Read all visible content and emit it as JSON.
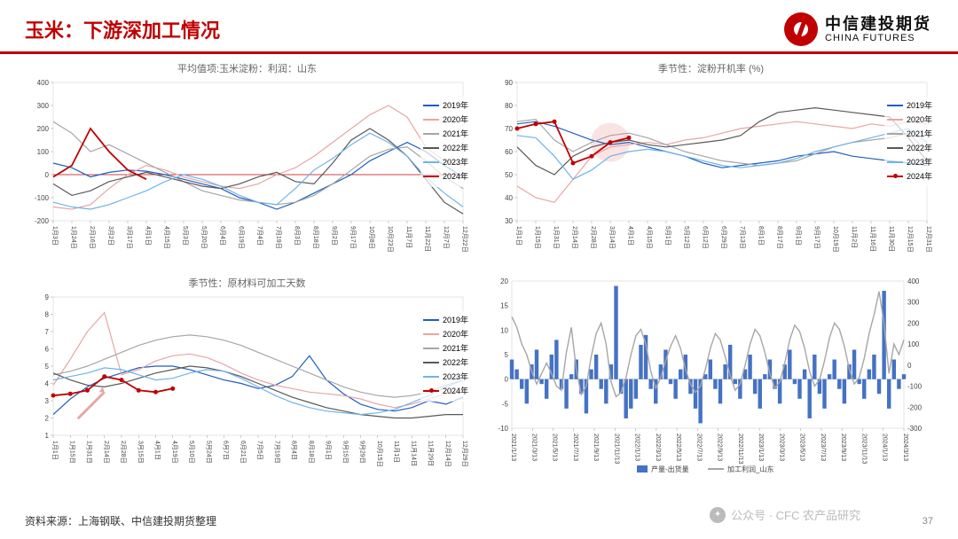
{
  "header": {
    "title": "玉米：下游深加工情况"
  },
  "logo": {
    "cn": "中信建投期货",
    "en": "CHINA FUTURES"
  },
  "footer": {
    "source": "资料来源：上海钢联、中信建投期货整理",
    "page": "37"
  },
  "watermark": {
    "text": "公众号 · CFC 农产品研究"
  },
  "colors": {
    "y2019": "#1f5fbf",
    "y2020": "#e8a5a5",
    "y2021": "#a6a6a6",
    "y2022": "#595959",
    "y2023": "#6fb4e8",
    "y2024": "#c00000",
    "axis": "#999999",
    "bar": "#4472c4",
    "line4": "#a6a6a6",
    "zero": "#c00000"
  },
  "legend_years": [
    {
      "k": "y2019",
      "label": "2019年"
    },
    {
      "k": "y2020",
      "label": "2020年"
    },
    {
      "k": "y2021",
      "label": "2021年"
    },
    {
      "k": "y2022",
      "label": "2022年"
    },
    {
      "k": "y2023",
      "label": "2023年"
    },
    {
      "k": "y2024",
      "label": "2024年"
    }
  ],
  "chart1": {
    "type": "line",
    "title": "平均值项:玉米淀粉：利润：山东",
    "ylim": [
      -200,
      400
    ],
    "ytick_step": 100,
    "x_labels": [
      "1月3日",
      "1月24日",
      "2月16日",
      "3月2日",
      "3月17日",
      "4月1日",
      "4月15日",
      "5月3日",
      "5月20日",
      "6月4日",
      "6月19日",
      "7月4日",
      "7月19日",
      "8月3日",
      "8月18日",
      "9月2日",
      "9月17日",
      "10月8日",
      "10月23日",
      "11月7日",
      "11月22日",
      "12月7日",
      "12月22日"
    ],
    "series": {
      "y2019": [
        50,
        30,
        -10,
        10,
        20,
        15,
        0,
        -20,
        -40,
        -60,
        -100,
        -120,
        -150,
        -120,
        -80,
        -40,
        0,
        60,
        100,
        140,
        100,
        40,
        -10
      ],
      "y2020": [
        -140,
        -150,
        -130,
        -60,
        0,
        40,
        20,
        -10,
        -30,
        -50,
        -60,
        -40,
        0,
        30,
        80,
        140,
        200,
        260,
        300,
        250,
        120,
        60,
        40
      ],
      "y2021": [
        230,
        180,
        100,
        130,
        90,
        50,
        10,
        -30,
        -70,
        -90,
        -110,
        -120,
        -130,
        -120,
        -90,
        -40,
        20,
        80,
        110,
        120,
        60,
        -10,
        -60
      ],
      "y2022": [
        -40,
        -90,
        -70,
        -30,
        -10,
        10,
        -10,
        -30,
        -50,
        -60,
        -40,
        -10,
        10,
        -30,
        -40,
        50,
        150,
        200,
        150,
        80,
        -20,
        -120,
        -170
      ],
      "y2023": [
        -120,
        -140,
        -150,
        -130,
        -100,
        -70,
        -30,
        0,
        -20,
        -50,
        -90,
        -120,
        -130,
        -60,
        20,
        70,
        130,
        180,
        140,
        80,
        -10,
        -80,
        -140
      ],
      "y2024": [
        -10,
        40,
        200,
        100,
        20,
        -20
      ]
    },
    "zeroline": true
  },
  "chart2": {
    "type": "line",
    "title": "季节性：淀粉开机率 (%)",
    "ylim": [
      30,
      90
    ],
    "ytick_step": 10,
    "x_labels": [
      "1月1日",
      "1月15日",
      "1月31日",
      "2月14日",
      "2月28日",
      "3月14日",
      "4月1日",
      "4月15日",
      "5月1日",
      "5月12日",
      "6月12日",
      "6月29日",
      "7月13日",
      "8月1日",
      "8月17日",
      "9月1日",
      "9月17日",
      "10月19日",
      "11月2日",
      "11月16日",
      "11月30日",
      "12月15日",
      "12月31日"
    ],
    "highlight": {
      "cx_idx": 5,
      "r": 22
    },
    "series": {
      "y2019": [
        72,
        73,
        71,
        68,
        65,
        63,
        64,
        62,
        60,
        58,
        55,
        53,
        54,
        55,
        56,
        58,
        59,
        60,
        58,
        57,
        56,
        55,
        54
      ],
      "y2020": [
        45,
        40,
        38,
        48,
        58,
        62,
        63,
        64,
        63,
        65,
        66,
        68,
        70,
        71,
        72,
        73,
        72,
        71,
        70,
        72,
        71,
        73,
        72
      ],
      "y2021": [
        73,
        74,
        65,
        60,
        64,
        67,
        68,
        66,
        63,
        60,
        58,
        56,
        55,
        54,
        55,
        56,
        59,
        62,
        64,
        65,
        66,
        68,
        60
      ],
      "y2022": [
        62,
        54,
        50,
        58,
        62,
        64,
        65,
        63,
        62,
        63,
        64,
        65,
        67,
        73,
        77,
        78,
        79,
        78,
        77,
        76,
        75,
        66,
        56
      ],
      "y2023": [
        67,
        66,
        58,
        48,
        52,
        58,
        60,
        61,
        60,
        58,
        56,
        54,
        53,
        54,
        55,
        57,
        60,
        62,
        64,
        66,
        68,
        70,
        64
      ],
      "y2024": [
        70,
        72,
        73,
        55,
        58,
        64,
        66
      ]
    }
  },
  "chart3": {
    "type": "line",
    "title": "季节性：原材料可加工天数",
    "ylim": [
      1,
      9
    ],
    "ytick_step": 1,
    "x_labels": [
      "1月1日",
      "1月15日",
      "1月31日",
      "2月14日",
      "2月28日",
      "3月15日",
      "4月1日",
      "4月19日",
      "5月10日",
      "5月24日",
      "6月7日",
      "6月21日",
      "7月5日",
      "7月19日",
      "8月4日",
      "8月18日",
      "9月1日",
      "9月15日",
      "9月29日",
      "10月15日",
      "11月1日",
      "11月14日",
      "11月29日",
      "12月14日",
      "12月29日"
    ],
    "arrow_2020_dip": true,
    "series": {
      "y2019": [
        2.2,
        3.1,
        3.8,
        4.3,
        4.6,
        4.9,
        5.0,
        5.0,
        4.8,
        4.5,
        4.2,
        4.0,
        3.7,
        3.9,
        4.4,
        5.6,
        4.2,
        3.4,
        2.8,
        2.5,
        2.4,
        2.6,
        3.0,
        2.8,
        3.2
      ],
      "y2020": [
        3.9,
        5.4,
        7.0,
        8.1,
        4.5,
        4.8,
        5.3,
        5.6,
        5.7,
        5.5,
        5.1,
        4.6,
        4.2,
        3.9,
        3.7,
        3.5,
        3.4,
        3.3,
        3.1,
        2.8,
        2.6,
        2.8,
        3.1,
        3.4,
        3.6
      ],
      "y2021": [
        4.5,
        4.7,
        5.0,
        5.4,
        5.8,
        6.2,
        6.5,
        6.7,
        6.8,
        6.7,
        6.5,
        6.2,
        5.8,
        5.4,
        5.0,
        4.6,
        4.2,
        3.8,
        3.5,
        3.3,
        3.2,
        3.3,
        3.5,
        3.9,
        4.2
      ],
      "y2022": [
        4.6,
        4.2,
        3.9,
        3.8,
        4.0,
        4.3,
        4.6,
        4.8,
        5.0,
        4.9,
        4.7,
        4.4,
        4.0,
        3.6,
        3.2,
        2.9,
        2.6,
        2.4,
        2.2,
        2.1,
        2.0,
        2.0,
        2.1,
        2.2,
        2.2
      ],
      "y2023": [
        4.2,
        4.4,
        4.6,
        4.9,
        4.8,
        4.5,
        4.2,
        4.3,
        4.6,
        4.8,
        4.7,
        4.3,
        3.8,
        3.3,
        2.9,
        2.6,
        2.4,
        2.3,
        2.2,
        2.3,
        2.5,
        2.9,
        3.3,
        3.8,
        4.2
      ],
      "y2024": [
        3.3,
        3.4,
        3.6,
        4.4,
        4.2,
        3.6,
        3.5,
        3.7
      ]
    }
  },
  "chart4": {
    "type": "combo",
    "title": "",
    "y_left": {
      "lim": [
        -10,
        20
      ],
      "step": 5
    },
    "y_right": {
      "lim": [
        -300,
        400
      ],
      "step": 100
    },
    "x_labels": [
      "2021/1/13",
      "2021/3/13",
      "2021/5/13",
      "2021/7/13",
      "2021/9/13",
      "2021/11/13",
      "2022/1/13",
      "2022/3/13",
      "2022/5/13",
      "2022/7/13",
      "2022/9/13",
      "2022/11/13",
      "2023/1/13",
      "2023/3/13",
      "2023/5/13",
      "2023/7/13",
      "2023/9/13",
      "2023/11/13",
      "2024/1/13",
      "2024/3/13"
    ],
    "legend": [
      {
        "label": "产量-出货量",
        "type": "bar",
        "color": "#4472c4"
      },
      {
        "label": "加工利润_山东",
        "type": "line",
        "color": "#a6a6a6"
      }
    ],
    "bars_n": 80,
    "bars": [
      4,
      2,
      -2,
      -5,
      3,
      6,
      -1,
      -4,
      5,
      8,
      -2,
      -6,
      1,
      4,
      -3,
      -7,
      2,
      5,
      -2,
      -5,
      3,
      19,
      -3,
      -8,
      -6,
      -4,
      7,
      9,
      -2,
      -5,
      3,
      6,
      -1,
      -4,
      2,
      5,
      -3,
      -6,
      -9,
      1,
      4,
      -2,
      -5,
      3,
      7,
      -1,
      -4,
      2,
      5,
      -3,
      -6,
      1,
      4,
      -2,
      -5,
      3,
      6,
      -1,
      -4,
      2,
      -8,
      5,
      -3,
      -6,
      1,
      4,
      -2,
      -5,
      3,
      6,
      -1,
      -4,
      2,
      5,
      -3,
      18,
      -6,
      4,
      -2,
      1
    ],
    "line": [
      230,
      180,
      100,
      50,
      -30,
      -90,
      -40,
      10,
      -40,
      -100,
      -120,
      60,
      180,
      -20,
      -140,
      -100,
      40,
      150,
      200,
      100,
      -80,
      -150,
      -130,
      -60,
      50,
      140,
      170,
      100,
      -30,
      -110,
      -60,
      20,
      90,
      140,
      80,
      -20,
      -90,
      -130,
      -100,
      -20,
      80,
      150,
      120,
      40,
      -50,
      -120,
      -90,
      0,
      100,
      170,
      140,
      60,
      -40,
      -110,
      -80,
      10,
      120,
      190,
      160,
      80,
      -30,
      -100,
      -70,
      20,
      130,
      200,
      170,
      90,
      -20,
      -90,
      -60,
      30,
      150,
      240,
      350,
      200,
      -40,
      100,
      50,
      120
    ]
  }
}
